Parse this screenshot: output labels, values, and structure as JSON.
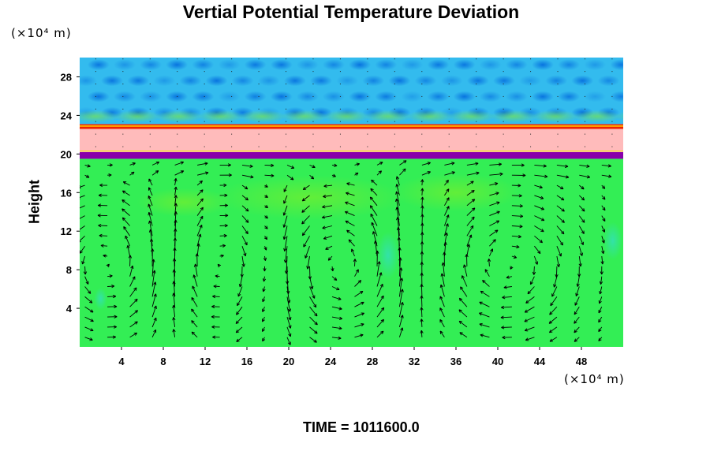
{
  "chart_data": {
    "type": "heatmap",
    "title": "Vertial Potential Temperature Deviation",
    "xlabel": "",
    "ylabel": "Height",
    "x_unit": "(×10⁴ m)",
    "y_unit": "(×10⁴ m)",
    "xlim": [
      0,
      52
    ],
    "ylim": [
      0,
      30
    ],
    "x_ticks": [
      4,
      8,
      12,
      16,
      20,
      24,
      28,
      32,
      36,
      40,
      44,
      48
    ],
    "y_ticks": [
      4,
      8,
      12,
      16,
      20,
      24,
      28
    ],
    "overlay": "velocity vectors",
    "layers": [
      {
        "name": "lower layer",
        "y_range": [
          0,
          19.5
        ],
        "color": "#33ee55"
      },
      {
        "name": "purple band",
        "y_range": [
          19.5,
          20.2
        ],
        "color": "#8800aa"
      },
      {
        "name": "pink band",
        "y_range": [
          20.2,
          22.6
        ],
        "color": "#ffbbbb"
      },
      {
        "name": "red interface",
        "y_range": [
          22.6,
          23.1
        ],
        "color": "#ee2200"
      },
      {
        "name": "upper wave layer",
        "y_range": [
          23.1,
          30
        ],
        "color": "#33bbee"
      }
    ],
    "circulation_centers_x": [
      4,
      13,
      24,
      41
    ]
  },
  "footer": {
    "time_label": "TIME = 1011600.0"
  }
}
